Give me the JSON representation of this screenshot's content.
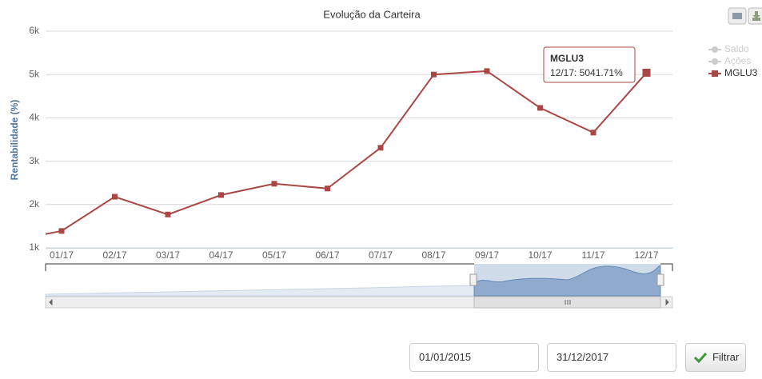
{
  "chart_data": {
    "type": "line",
    "title": "Evolução da Carteira",
    "y_label": "Rentabilidade (%)",
    "categories": [
      null,
      "01/17",
      "02/17",
      "03/17",
      "04/17",
      "05/17",
      "06/17",
      "07/17",
      "08/17",
      "09/17",
      "10/17",
      "11/17",
      "12/17"
    ],
    "series": [
      {
        "name": "Saldo",
        "color": "#cccccc",
        "visible": false
      },
      {
        "name": "Ações",
        "color": "#cccccc",
        "visible": false
      },
      {
        "name": "MGLU3",
        "color": "#aa4643",
        "visible": true,
        "values": [
          1150,
          1390,
          2180,
          1770,
          2220,
          2480,
          2370,
          3310,
          5000,
          5080,
          4230,
          3660,
          5041.71
        ]
      }
    ],
    "ylim": [
      1000,
      6000
    ],
    "yticks": [
      {
        "value": 1000,
        "label": "1k"
      },
      {
        "value": 2000,
        "label": "2k"
      },
      {
        "value": 3000,
        "label": "3k"
      },
      {
        "value": 4000,
        "label": "4k"
      },
      {
        "value": 5000,
        "label": "5k"
      },
      {
        "value": 6000,
        "label": "6k"
      }
    ],
    "grid": true,
    "legend": "top-right",
    "tooltip": {
      "text": "12/17: 5041.71%"
    }
  },
  "filter": {
    "start": "01/01/2015",
    "end": "31/12/2017",
    "button": "Filtrar"
  }
}
